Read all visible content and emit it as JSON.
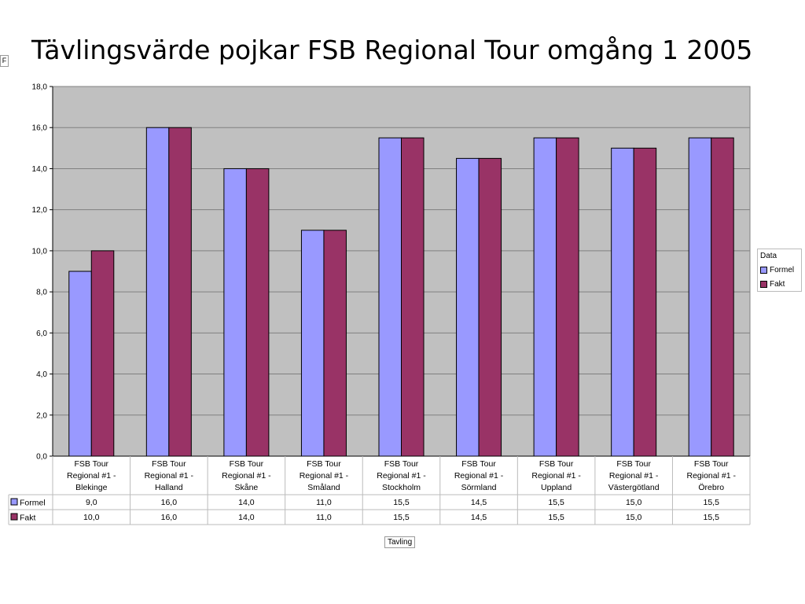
{
  "title": "Tävlingsvärde pojkar FSB Regional Tour omgång 1 2005",
  "field_tag": "F",
  "legend": {
    "title": "Data",
    "items": [
      {
        "label": "Formel",
        "color": "#9999FF"
      },
      {
        "label": "Fakt",
        "color": "#993366"
      }
    ]
  },
  "x_title": "Tavling",
  "chart_data": {
    "type": "bar",
    "title": "Tävlingsvärde pojkar FSB Regional Tour omgång 1 2005",
    "xlabel": "Tavling",
    "ylabel": "",
    "ylim": [
      0,
      18
    ],
    "yticks": [
      "0,0",
      "2,0",
      "4,0",
      "6,0",
      "8,0",
      "10,0",
      "12,0",
      "14,0",
      "16,0",
      "18,0"
    ],
    "grid": true,
    "legend_position": "right",
    "categories": [
      [
        "FSB Tour",
        "Regional #1 -",
        "Blekinge"
      ],
      [
        "FSB Tour",
        "Regional #1 -",
        "Halland"
      ],
      [
        "FSB Tour",
        "Regional #1 -",
        "Skåne"
      ],
      [
        "FSB Tour",
        "Regional #1 -",
        "Småland"
      ],
      [
        "FSB Tour",
        "Regional #1 -",
        "Stockholm"
      ],
      [
        "FSB Tour",
        "Regional #1 -",
        "Sörmland"
      ],
      [
        "FSB Tour",
        "Regional #1 -",
        "Uppland"
      ],
      [
        "FSB Tour",
        "Regional #1 -",
        "Västergötland"
      ],
      [
        "FSB Tour",
        "Regional #1 -",
        "Örebro"
      ]
    ],
    "series": [
      {
        "name": "Formel",
        "color": "#9999FF",
        "values": [
          9.0,
          16.0,
          14.0,
          11.0,
          15.5,
          14.5,
          15.5,
          15.0,
          15.5
        ],
        "labels": [
          "9,0",
          "16,0",
          "14,0",
          "11,0",
          "15,5",
          "14,5",
          "15,5",
          "15,0",
          "15,5"
        ]
      },
      {
        "name": "Fakt",
        "color": "#993366",
        "values": [
          10.0,
          16.0,
          14.0,
          11.0,
          15.5,
          14.5,
          15.5,
          15.0,
          15.5
        ],
        "labels": [
          "10,0",
          "16,0",
          "14,0",
          "11,0",
          "15,5",
          "14,5",
          "15,5",
          "15,0",
          "15,5"
        ]
      }
    ]
  }
}
